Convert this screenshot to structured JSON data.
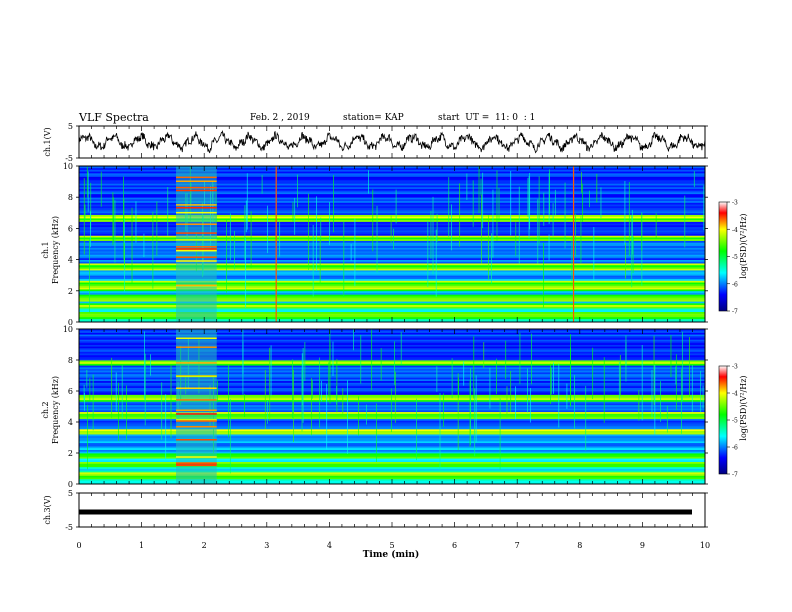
{
  "header": {
    "title": "VLF Spectra",
    "date": "Feb. 2 , 2019",
    "station": "station= KAP",
    "start": "start  UT =  11: 0  : 1"
  },
  "chart_data": [
    {
      "type": "line",
      "ylabel": "ch.1(V)",
      "ylim": [
        -5,
        5
      ],
      "yticks": [
        "5",
        "-5"
      ],
      "description_series": "oscillating voltage trace",
      "x_range": [
        0,
        10
      ]
    },
    {
      "type": "heatmap",
      "ylabel": "ch.1\nFrequency (kHz)",
      "ylabel_line1": "ch.1",
      "ylabel_line2": "Frequency (kHz)",
      "ylim": [
        0,
        10
      ],
      "yticks": [
        "0",
        "2",
        "4",
        "6",
        "8",
        "10"
      ],
      "colorbar": {
        "label": "log(PSD)(V²/Hz)",
        "range": [
          -7,
          -3
        ],
        "ticks": [
          "-3",
          "-4",
          "-5",
          "-6",
          "-7"
        ]
      },
      "bright_bands_khz": [
        0.4,
        1.0,
        1.5,
        2.1,
        2.4,
        3.5,
        5.3,
        6.6
      ],
      "burst_time_min": [
        1.55,
        2.2
      ],
      "spike_times_min": [
        3.15,
        7.9
      ]
    },
    {
      "type": "heatmap",
      "ylabel": "ch.2\nFrequency (kHz)",
      "ylabel_line1": "ch.2",
      "ylabel_line2": "Frequency (kHz)",
      "ylim": [
        0,
        10
      ],
      "yticks": [
        "0",
        "2",
        "4",
        "6",
        "8",
        "10"
      ],
      "colorbar": {
        "label": "log(PSD)(V²/Hz)",
        "range": [
          -7,
          -3
        ],
        "ticks": [
          "-3",
          "-4",
          "-5",
          "-6",
          "-7"
        ]
      },
      "bright_bands_khz": [
        0.5,
        1.2,
        1.8,
        3.3,
        4.4,
        5.5,
        7.8
      ],
      "burst_time_min": [
        1.55,
        2.2
      ]
    },
    {
      "type": "line",
      "ylabel": "ch.3(V)",
      "ylim": [
        -5,
        5
      ],
      "yticks": [
        "5",
        "-5"
      ],
      "constant_value": 0,
      "x_range": [
        0,
        10
      ]
    }
  ],
  "xaxis": {
    "label": "Time  (min)",
    "ticks": [
      "0",
      "1",
      "2",
      "3",
      "4",
      "5",
      "6",
      "7",
      "8",
      "9",
      "10"
    ],
    "range": [
      0,
      10
    ]
  },
  "colors": {
    "background": "#ffffff",
    "trace": "#000000"
  }
}
